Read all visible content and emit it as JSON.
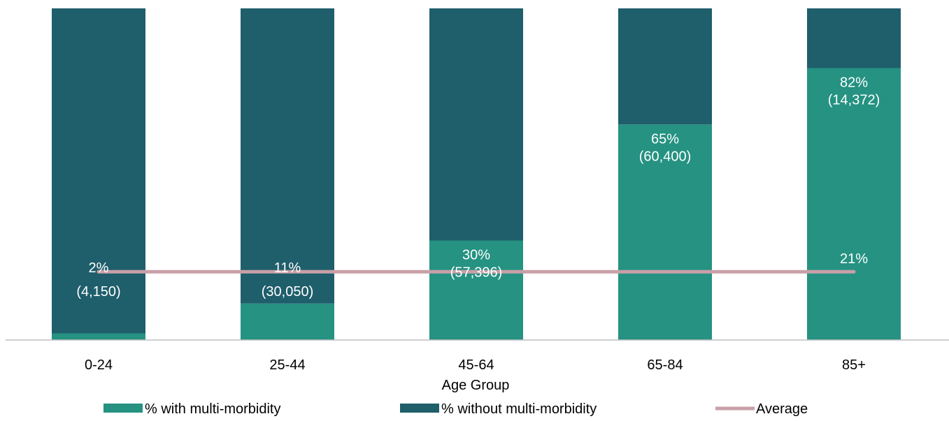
{
  "chart_data": {
    "type": "bar",
    "stacked": true,
    "categories": [
      "0-24",
      "25-44",
      "45-64",
      "65-84",
      "85+"
    ],
    "series": [
      {
        "name": "% with multi-morbidity",
        "values": [
          2,
          11,
          30,
          65,
          82
        ],
        "color": "#259282"
      },
      {
        "name": "% without multi-morbidity",
        "values": [
          98,
          89,
          70,
          35,
          18
        ],
        "color": "#1f5e6b"
      }
    ],
    "data_labels": [
      {
        "percent": "2%",
        "count": "(4,150)"
      },
      {
        "percent": "11%",
        "count": "(30,050)"
      },
      {
        "percent": "30%",
        "count": "(57,396)"
      },
      {
        "percent": "65%",
        "count": "(60,400)"
      },
      {
        "percent": "82%",
        "count": "(14,372)"
      }
    ],
    "average": {
      "name": "Average",
      "value": 21,
      "label": "21%",
      "color": "#c9a0a8"
    },
    "xlabel": "Age Group",
    "ylabel": "",
    "ylim": [
      0,
      100
    ],
    "grid": false,
    "legend": "bottom"
  }
}
